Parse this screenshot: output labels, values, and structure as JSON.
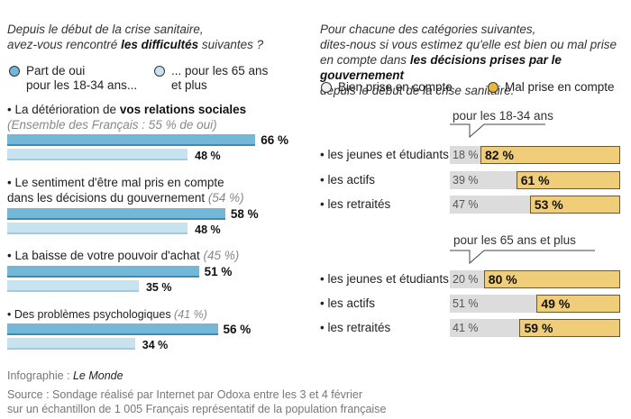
{
  "left": {
    "question_pre": "Depuis le début de la crise sanitaire,",
    "question_mid": "avez-vous rencontré ",
    "question_bold": "les difficultés",
    "question_post": " suivantes ?",
    "legend": {
      "young_line1": "Part de oui",
      "young_line2": "pour les 18-34 ans...",
      "old_line1": "... pour les 65 ans",
      "old_line2": "et plus"
    }
  },
  "right": {
    "question_line1": "Pour chacune des catégories suivantes,",
    "question_line2": "dites-nous si vous estimez qu'elle est bien ou mal prise",
    "question_line3_pre": "en compte dans ",
    "question_line3_bold": "les décisions prises par le gouvernement",
    "question_line4": "depuis le début de la crise sanitaire.",
    "legend": {
      "bien": "Bien prise en compte",
      "mal": "Mal prise en compte"
    }
  },
  "colors": {
    "young": "#74b7d6",
    "old": "#c9e2ef",
    "bien": "#dcdcdc",
    "mal": "#f0cd78"
  },
  "chart_data": [
    {
      "type": "bar",
      "orientation": "horizontal",
      "title": "Depuis le début de la crise sanitaire, avez-vous rencontré les difficultés suivantes ?",
      "series": [
        {
          "name": "Part de oui pour les 18-34 ans...",
          "values": [
            66,
            58,
            51,
            56
          ]
        },
        {
          "name": "... pour les 65 ans et plus",
          "values": [
            48,
            48,
            35,
            34
          ]
        }
      ],
      "items": [
        {
          "bullet": "• ",
          "text_pre": "La détérioration de ",
          "text_bold": "vos relations sociales",
          "text_line2_italic": "(Ensemble des Français : 55 % de oui)",
          "young": 66,
          "old": 48,
          "young_label": "66 %",
          "old_label": "48 %"
        },
        {
          "bullet": "• ",
          "text_line1": "Le sentiment d'être mal pris en compte",
          "text_line2": "dans les décisions du gouvernement ",
          "text_italic": "(54 %)",
          "young": 58,
          "old": 48,
          "young_label": "58 %",
          "old_label": "48 %"
        },
        {
          "bullet": "• ",
          "text_line1": "La baisse de votre pouvoir d'achat ",
          "text_italic": "(45 %)",
          "young": 51,
          "old": 35,
          "young_label": "51 %",
          "old_label": "35 %"
        },
        {
          "bullet": "• ",
          "text_line1": "Des problèmes psychologiques ",
          "text_italic": "(41 %)",
          "young": 56,
          "old": 34,
          "young_label": "56 %",
          "old_label": "34 %"
        }
      ],
      "xlim": [
        0,
        100
      ],
      "unit": "%"
    },
    {
      "type": "bar",
      "orientation": "horizontal",
      "stacked": true,
      "title": "Pour chacune des catégories suivantes, dites-nous si vous estimez qu'elle est bien ou mal prise en compte dans les décisions prises par le gouvernement depuis le début de la crise sanitaire.",
      "legend": [
        "Bien prise en compte",
        "Mal prise en compte"
      ],
      "groups": [
        {
          "label": "pour les 18-34 ans",
          "rows": [
            {
              "category": "• les jeunes et étudiants",
              "bien": 18,
              "mal": 82,
              "bien_label": "18 %",
              "mal_label": "82 %"
            },
            {
              "category": "• les actifs",
              "bien": 39,
              "mal": 61,
              "bien_label": "39 %",
              "mal_label": "61 %"
            },
            {
              "category": "• les retraités",
              "bien": 47,
              "mal": 53,
              "bien_label": "47 %",
              "mal_label": "53 %"
            }
          ]
        },
        {
          "label": "pour les 65 ans et plus",
          "rows": [
            {
              "category": "• les jeunes et étudiants",
              "bien": 20,
              "mal": 80,
              "bien_label": "20 %",
              "mal_label": "80 %"
            },
            {
              "category": "• les actifs",
              "bien": 51,
              "mal": 49,
              "bien_label": "51 %",
              "mal_label": "49 %"
            },
            {
              "category": "• les retraités",
              "bien": 41,
              "mal": 59,
              "bien_label": "41 %",
              "mal_label": "59 %"
            }
          ]
        }
      ],
      "xlim": [
        0,
        100
      ],
      "unit": "%"
    }
  ],
  "footer": {
    "credit_pre": "Infographie : ",
    "credit_italic": "Le Monde",
    "source_line1": "Source : Sondage réalisé par Internet par Odoxa  entre les 3 et 4 février",
    "source_line2": "sur un échantillon de 1 005 Français représentatif de la population française"
  }
}
